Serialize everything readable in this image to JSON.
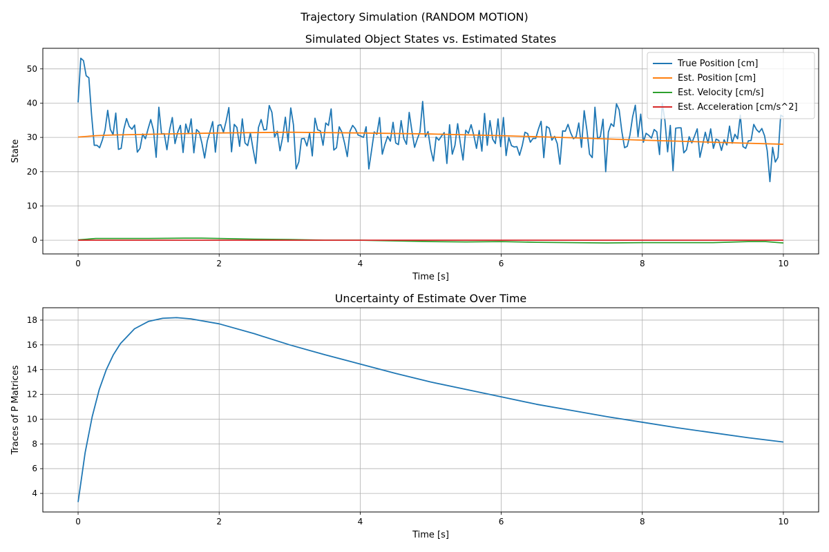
{
  "figure": {
    "suptitle": "Trajectory Simulation (RANDOM MOTION)"
  },
  "colors": {
    "c0": "#1f77b4",
    "c1": "#ff7f0e",
    "c2": "#2ca02c",
    "c3": "#d62728"
  },
  "chart_data": [
    {
      "type": "line",
      "title": "Simulated Object States vs. Estimated States",
      "xlabel": "Time [s]",
      "ylabel": "State",
      "xlim": [
        -0.5,
        10.5
      ],
      "ylim": [
        -4,
        56
      ],
      "xticks": [
        0,
        2,
        4,
        6,
        8,
        10
      ],
      "yticks": [
        0,
        10,
        20,
        30,
        40,
        50
      ],
      "grid": true,
      "legend": "top-right",
      "series": [
        {
          "name": "True Position [cm]",
          "color": "#1f77b4",
          "x_range": [
            0,
            10
          ],
          "values": [
            40.2,
            53.1,
            52.4,
            48.0,
            47.4,
            36.6,
            27.7,
            27.7,
            27.0,
            29.2,
            32.1,
            37.9,
            32.3,
            30.8,
            37.1,
            26.5,
            26.8,
            32.4,
            35.5,
            33.2,
            32.4,
            33.6,
            25.7,
            26.8,
            31.0,
            29.6,
            32.5,
            35.2,
            32.1,
            24.2,
            38.8,
            31.0,
            31.1,
            26.4,
            32.2,
            35.8,
            28.2,
            31.5,
            33.5,
            25.6,
            33.9,
            31.1,
            35.4,
            25.5,
            32.3,
            31.5,
            28.3,
            24.0,
            29.0,
            31.7,
            34.6,
            25.7,
            33.5,
            33.7,
            31.5,
            34.8,
            38.7,
            25.8,
            33.8,
            32.9,
            27.4,
            35.4,
            28.4,
            27.6,
            31.3,
            26.6,
            22.4,
            32.9,
            35.2,
            32.2,
            32.3,
            39.3,
            37.3,
            30.1,
            31.8,
            26.1,
            30.1,
            35.9,
            28.7,
            38.6,
            33.7,
            20.8,
            22.9,
            29.6,
            29.7,
            27.5,
            31.2,
            24.6,
            35.6,
            32.2,
            31.9,
            27.7,
            34.2,
            33.5,
            38.3,
            26.3,
            27.0,
            33.1,
            31.5,
            28.3,
            24.4,
            31.8,
            33.5,
            32.5,
            30.7,
            30.4,
            30.0,
            33.1,
            20.8,
            26.1,
            31.6,
            30.9,
            35.8,
            25.1,
            28.0,
            30.3,
            28.9,
            34.4,
            28.4,
            27.9,
            34.9,
            29.7,
            28.0,
            37.3,
            31.9,
            27.1,
            29.5,
            31.6,
            40.5,
            30.2,
            31.7,
            26.5,
            23.1,
            30.1,
            29.2,
            30.4,
            31.4,
            22.4,
            33.7,
            25.1,
            27.7,
            34.0,
            28.3,
            23.4,
            32.1,
            31.2,
            33.7,
            30.6,
            26.8,
            32.0,
            26.0,
            37.0,
            27.7,
            34.9,
            29.5,
            28.2,
            35.4,
            27.3,
            35.8,
            24.7,
            30.0,
            27.6,
            27.2,
            27.3,
            24.8,
            27.6,
            31.5,
            31.1,
            28.6,
            29.7,
            29.7,
            32.4,
            34.7,
            24.1,
            33.2,
            32.7,
            29.2,
            30.3,
            28.2,
            22.2,
            31.9,
            31.8,
            33.8,
            31.3,
            29.6,
            30.2,
            34.2,
            27.1,
            37.8,
            32.2,
            25.1,
            24.1,
            38.8,
            29.6,
            30.2,
            35.3,
            20.0,
            31.6,
            34.0,
            33.2,
            39.8,
            38.0,
            31.7,
            27.0,
            27.4,
            30.7,
            36.0,
            39.4,
            30.2,
            36.8,
            28.6,
            31.2,
            30.6,
            29.8,
            32.3,
            31.6,
            25.0,
            40.0,
            34.9,
            25.8,
            33.5,
            20.3,
            32.7,
            32.8,
            32.8,
            25.5,
            26.4,
            30.2,
            28.4,
            30.4,
            32.5,
            24.2,
            27.8,
            31.5,
            28.3,
            32.5,
            26.8,
            29.5,
            29.1,
            26.2,
            29.3,
            27.8,
            33.3,
            28.3,
            30.9,
            29.6,
            36.5,
            27.3,
            26.8,
            29.0,
            29.1,
            33.8,
            32.3,
            31.5,
            32.6,
            30.5,
            26.1,
            17.1,
            27.1,
            22.8,
            24.2,
            36.5,
            36.0
          ]
        },
        {
          "name": "Est. Position [cm]",
          "color": "#ff7f0e",
          "x": [
            0,
            0.25,
            0.5,
            1,
            2,
            3,
            4,
            5,
            6,
            7,
            8,
            9,
            10
          ],
          "values": [
            30.1,
            30.5,
            30.7,
            30.9,
            31.3,
            31.5,
            31.3,
            31.0,
            30.5,
            29.9,
            29.2,
            28.6,
            28.0
          ]
        },
        {
          "name": "Est. Velocity [cm/s]",
          "color": "#2ca02c",
          "x": [
            0,
            0.25,
            0.5,
            1,
            1.5,
            1.75,
            2,
            2.5,
            3,
            3.5,
            4,
            4.5,
            5,
            5.5,
            6,
            6.5,
            7,
            7.5,
            8,
            8.5,
            9,
            9.5,
            9.75,
            10
          ],
          "values": [
            0.1,
            0.5,
            0.5,
            0.5,
            0.6,
            0.6,
            0.5,
            0.3,
            0.2,
            0.0,
            0.0,
            -0.2,
            -0.4,
            -0.5,
            -0.4,
            -0.6,
            -0.7,
            -0.8,
            -0.7,
            -0.7,
            -0.7,
            -0.4,
            -0.4,
            -0.8
          ]
        },
        {
          "name": "Est. Acceleration [cm/s^2]",
          "color": "#d62728",
          "x": [
            0,
            10
          ],
          "values": [
            0.0,
            0.0
          ]
        }
      ]
    },
    {
      "type": "line",
      "title": "Uncertainty of Estimate Over Time",
      "xlabel": "Time [s]",
      "ylabel": "Traces of P Matrices",
      "xlim": [
        -0.5,
        10.5
      ],
      "ylim": [
        2.5,
        19.0
      ],
      "xticks": [
        0,
        2,
        4,
        6,
        8,
        10
      ],
      "yticks": [
        4,
        6,
        8,
        10,
        12,
        14,
        16,
        18
      ],
      "grid": true,
      "series": [
        {
          "color": "#1f77b4",
          "x": [
            0,
            0.1,
            0.2,
            0.3,
            0.4,
            0.5,
            0.6,
            0.8,
            1.0,
            1.2,
            1.4,
            1.6,
            1.8,
            2.0,
            2.5,
            3.0,
            3.5,
            4.0,
            4.5,
            5.0,
            5.5,
            6.0,
            6.5,
            7.0,
            7.5,
            8.0,
            8.5,
            9.0,
            9.5,
            10.0
          ],
          "values": [
            3.3,
            7.3,
            10.2,
            12.4,
            14.0,
            15.2,
            16.1,
            17.3,
            17.9,
            18.15,
            18.2,
            18.1,
            17.9,
            17.7,
            16.9,
            16.0,
            15.2,
            14.45,
            13.7,
            13.0,
            12.4,
            11.8,
            11.2,
            10.7,
            10.2,
            9.75,
            9.3,
            8.9,
            8.5,
            8.15
          ]
        }
      ]
    }
  ]
}
